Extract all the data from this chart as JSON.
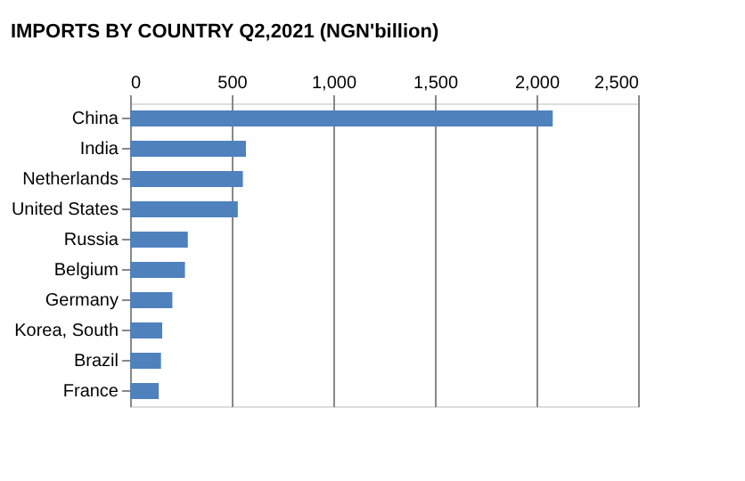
{
  "chart_data": {
    "type": "bar",
    "orientation": "horizontal",
    "title": "IMPORTS  BY COUNTRY Q2,2021 (NGN'billion)",
    "categories": [
      "China",
      "India",
      "Netherlands",
      "United States",
      "Russia",
      "Belgium",
      "Germany",
      "Korea, South",
      "Brazil",
      "France"
    ],
    "values": [
      2080,
      570,
      555,
      530,
      284,
      270,
      208,
      158,
      152,
      141
    ],
    "color": "#4f81bd",
    "xlim": [
      0,
      2500
    ],
    "xticks": [
      0,
      {
        "value": 500,
        "label": "500"
      },
      {
        "value": 1000,
        "label": "1,000"
      },
      {
        "value": 1500,
        "label": "1,500"
      },
      {
        "value": 2000,
        "label": "2,000"
      },
      {
        "value": 2500,
        "label": "2,500"
      }
    ],
    "grid": "x"
  }
}
